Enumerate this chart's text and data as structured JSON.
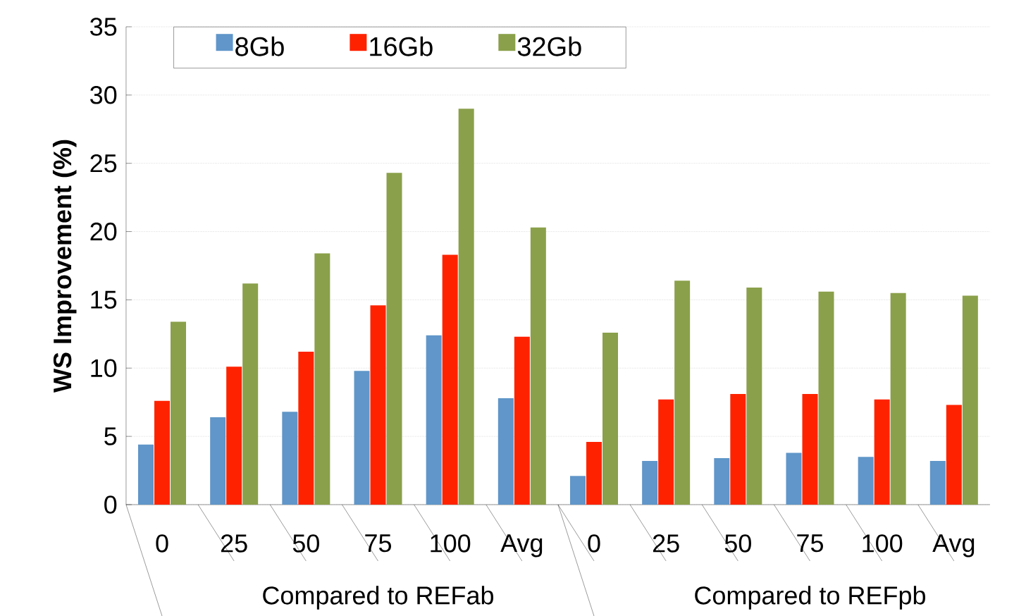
{
  "chart_data": {
    "type": "bar",
    "ylabel": "WS Improvement (%)",
    "categories": [
      "0",
      "25",
      "50",
      "75",
      "100",
      "Avg",
      "0",
      "25",
      "50",
      "75",
      "100",
      "Avg"
    ],
    "series": [
      {
        "name": "8Gb",
        "color": "#6096c9",
        "values": [
          4.4,
          6.4,
          6.8,
          9.8,
          12.4,
          7.8,
          2.1,
          3.2,
          3.4,
          3.8,
          3.5,
          3.2
        ]
      },
      {
        "name": "16Gb",
        "color": "#ff2200",
        "values": [
          7.6,
          10.1,
          11.2,
          14.6,
          18.3,
          12.3,
          4.6,
          7.7,
          8.1,
          8.1,
          7.7,
          7.3
        ]
      },
      {
        "name": "32Gb",
        "color": "#8aa04a",
        "values": [
          13.4,
          16.2,
          18.4,
          24.3,
          29.0,
          20.3,
          12.6,
          16.4,
          15.9,
          15.6,
          15.5,
          15.3
        ]
      }
    ],
    "annotations": [
      "Compared to REFab",
      "Compared to REFpb"
    ],
    "ylim": [
      0,
      35
    ],
    "yticks": [
      0,
      5,
      10,
      15,
      20,
      25,
      30,
      35
    ],
    "grid": "y",
    "legend": "top"
  }
}
